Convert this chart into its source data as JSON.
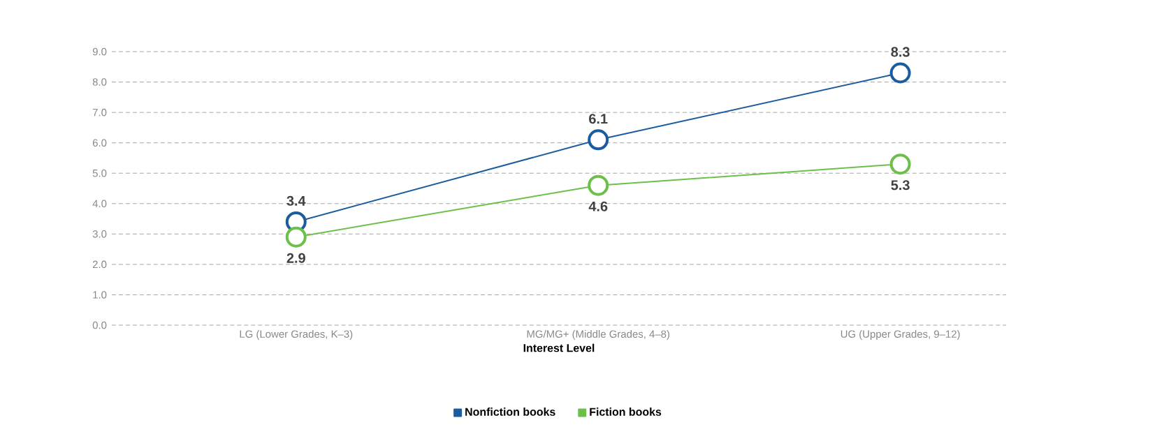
{
  "chart_data": {
    "type": "line",
    "xlabel": "Interest Level",
    "categories": [
      "LG (Lower Grades, K–3)",
      "MG/MG+ (Middle Grades, 4–8)",
      "UG (Upper Grades, 9–12)"
    ],
    "series": [
      {
        "name": "Nonfiction books",
        "color": "#1b5c9c",
        "values": [
          3.4,
          6.1,
          8.3
        ]
      },
      {
        "name": "Fiction books",
        "color": "#6cc04a",
        "values": [
          2.9,
          4.6,
          5.3
        ]
      }
    ],
    "ylim": [
      0,
      9
    ],
    "yticks": [
      {
        "value": 0,
        "label": "0.0"
      },
      {
        "value": 1,
        "label": "1.0"
      },
      {
        "value": 2,
        "label": "2.0"
      },
      {
        "value": 3,
        "label": "3.0"
      },
      {
        "value": 4,
        "label": "4.0"
      },
      {
        "value": 5,
        "label": "5.0"
      },
      {
        "value": 6,
        "label": "6.0"
      },
      {
        "value": 7,
        "label": "7.0"
      },
      {
        "value": 8,
        "label": "8.0"
      },
      {
        "value": 9,
        "label": "9.0"
      }
    ],
    "grid": "y",
    "legend": "bottom",
    "marker": "circle",
    "line_style": "solid",
    "data_labels": true
  }
}
